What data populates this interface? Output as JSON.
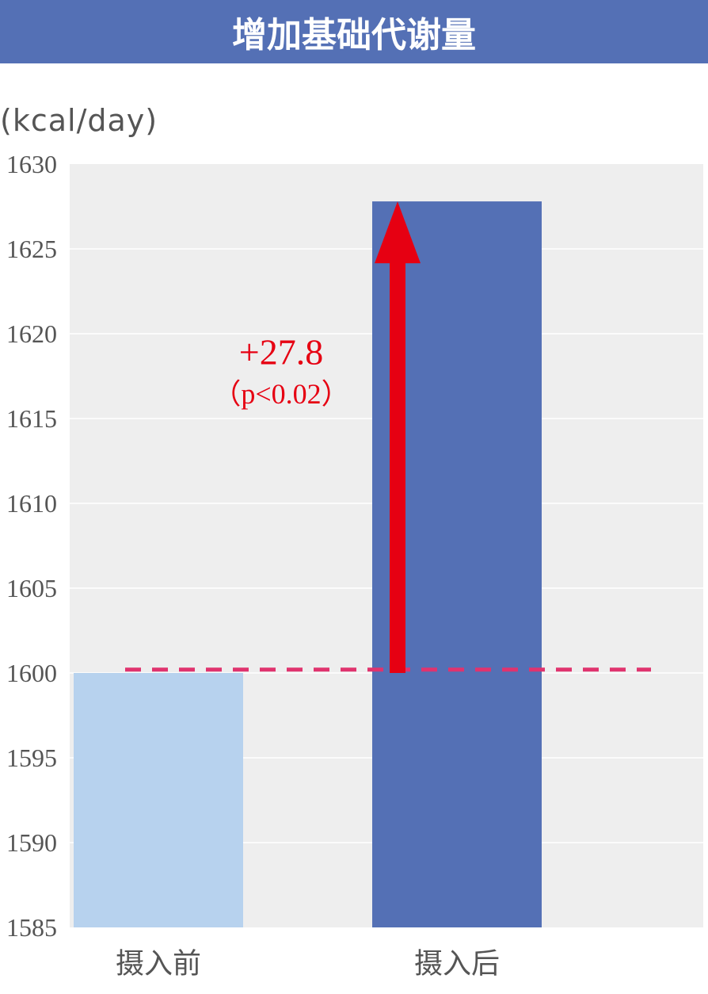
{
  "title": "增加基础代谢量",
  "colors": {
    "title_bg": "#5470b5",
    "plot_bg": "#eeeeee",
    "gridline": "#ffffff",
    "text": "#555555",
    "arrow": "#e60012",
    "baseline_dash": "#e0336e"
  },
  "chart_data": {
    "type": "bar",
    "ylabel": "(kcal/day)",
    "ylim": [
      1585,
      1630
    ],
    "yticks": [
      1630,
      1625,
      1620,
      1615,
      1610,
      1605,
      1600,
      1595,
      1590,
      1585
    ],
    "categories": [
      "摄入前",
      "摄入后"
    ],
    "values": [
      1600,
      1627.8
    ],
    "bar_colors": [
      "#b7d2ee",
      "#5470b5"
    ],
    "grid": true,
    "reference_line": 1600.2,
    "annotation": {
      "text": "+27.8",
      "subtext": "（p<0.02）",
      "arrow_from": 1600,
      "arrow_to": 1627.8
    }
  }
}
